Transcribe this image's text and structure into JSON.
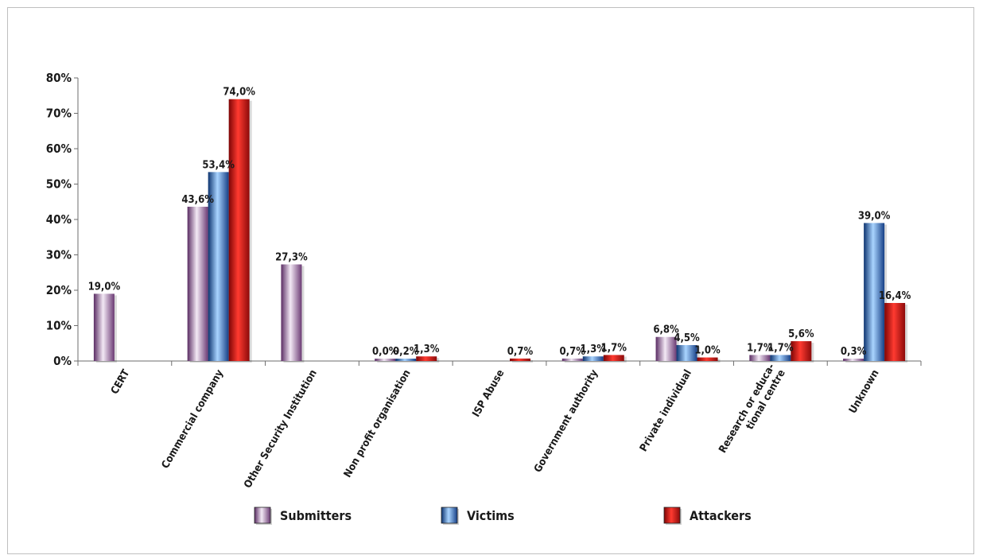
{
  "chart_data": {
    "type": "bar",
    "title": "",
    "xlabel": "",
    "ylabel": "",
    "ylim": [
      0,
      80
    ],
    "yticks": [
      0,
      10,
      20,
      30,
      40,
      50,
      60,
      70,
      80
    ],
    "ytick_labels": [
      "0%",
      "10%",
      "20%",
      "30%",
      "40%",
      "50%",
      "60%",
      "70%",
      "80%"
    ],
    "grid": false,
    "legend_position": "bottom",
    "categories": [
      "CERT",
      "Commercial company",
      "Other Security Institution",
      "Non profit organisation",
      "ISP Abuse",
      "Government authority",
      "Private individual",
      "Research or educa-\ntional centre",
      "Unknown"
    ],
    "series": [
      {
        "name": "Submitters",
        "color": "#8b5e93",
        "values": [
          19.0,
          43.6,
          27.3,
          0.0,
          null,
          0.7,
          6.8,
          1.7,
          0.3
        ],
        "labels": [
          "19,0%",
          "43,6%",
          "27,3%",
          "0,0%",
          "",
          "0,7%",
          "6,8%",
          "1,7%",
          "0,3%"
        ]
      },
      {
        "name": "Victims",
        "color": "#1f5aa8",
        "values": [
          null,
          53.4,
          null,
          0.2,
          null,
          1.3,
          4.5,
          1.7,
          39.0
        ],
        "labels": [
          "",
          "53,4%",
          "",
          "0,2%",
          "",
          "1,3%",
          "4,5%",
          "1,7%",
          "39,0%"
        ]
      },
      {
        "name": "Attackers",
        "color": "#c01a1a",
        "values": [
          null,
          74.0,
          null,
          1.3,
          0.7,
          1.7,
          1.0,
          5.6,
          16.4
        ],
        "labels": [
          "",
          "74,0%",
          "",
          "1,3%",
          "0,7%",
          "1,7%",
          "1,0%",
          "5,6%",
          "16,4%"
        ]
      }
    ]
  }
}
